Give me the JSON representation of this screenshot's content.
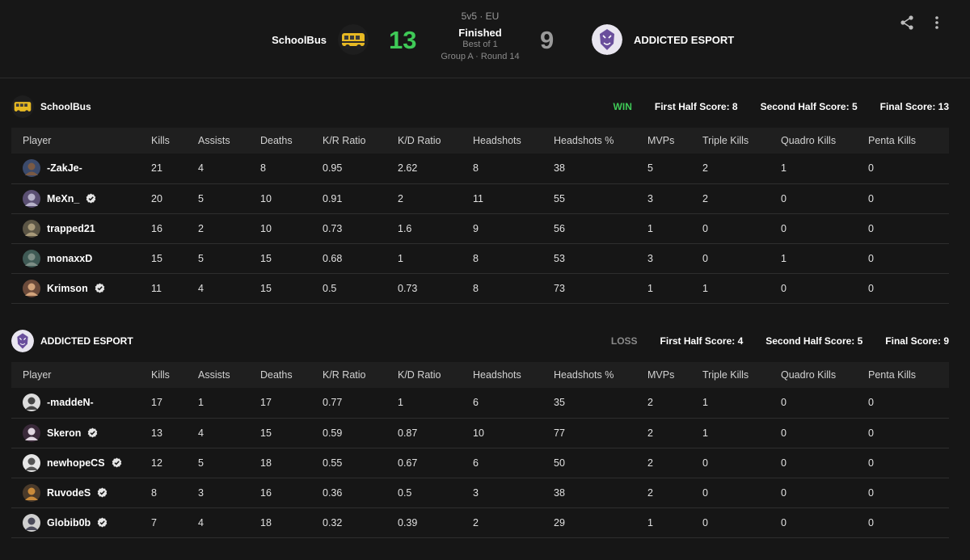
{
  "match": {
    "format": "5v5 · EU",
    "status": "Finished",
    "best_of": "Best of 1",
    "group_round": "Group A · Round 14",
    "left_score": "13",
    "right_score": "9",
    "team1": "SchoolBus",
    "team2": "ADDICTED ESPORT"
  },
  "colors": {
    "win": "#3fca57",
    "loss": "#8a8a8a",
    "bg": "#161616"
  },
  "icons": [
    "share-icon",
    "more-vertical-icon",
    "verified-icon"
  ],
  "columns": [
    "Player",
    "Kills",
    "Assists",
    "Deaths",
    "K/R Ratio",
    "K/D Ratio",
    "Headshots",
    "Headshots %",
    "MVPs",
    "Triple Kills",
    "Quadro Kills",
    "Penta Kills"
  ],
  "teams": [
    {
      "name": "SchoolBus",
      "result": "WIN",
      "first_half": "First Half Score: 8",
      "second_half": "Second Half Score: 5",
      "final": "Final Score: 13",
      "players": [
        {
          "name": "-ZakJe-",
          "verified": false,
          "stats": [
            "21",
            "4",
            "8",
            "0.95",
            "2.62",
            "8",
            "38",
            "5",
            "2",
            "1",
            "0"
          ]
        },
        {
          "name": "MeXn_",
          "verified": true,
          "stats": [
            "20",
            "5",
            "10",
            "0.91",
            "2",
            "11",
            "55",
            "3",
            "2",
            "0",
            "0"
          ]
        },
        {
          "name": "trapped21",
          "verified": false,
          "stats": [
            "16",
            "2",
            "10",
            "0.73",
            "1.6",
            "9",
            "56",
            "1",
            "0",
            "0",
            "0"
          ]
        },
        {
          "name": "monaxxD",
          "verified": false,
          "stats": [
            "15",
            "5",
            "15",
            "0.68",
            "1",
            "8",
            "53",
            "3",
            "0",
            "1",
            "0"
          ]
        },
        {
          "name": "Krimson",
          "verified": true,
          "stats": [
            "11",
            "4",
            "15",
            "0.5",
            "0.73",
            "8",
            "73",
            "1",
            "1",
            "0",
            "0"
          ]
        }
      ]
    },
    {
      "name": "ADDICTED ESPORT",
      "result": "LOSS",
      "first_half": "First Half Score: 4",
      "second_half": "Second Half Score: 5",
      "final": "Final Score: 9",
      "players": [
        {
          "name": "-maddeN-",
          "verified": false,
          "stats": [
            "17",
            "1",
            "17",
            "0.77",
            "1",
            "6",
            "35",
            "2",
            "1",
            "0",
            "0"
          ]
        },
        {
          "name": "Skeron",
          "verified": true,
          "stats": [
            "13",
            "4",
            "15",
            "0.59",
            "0.87",
            "10",
            "77",
            "2",
            "1",
            "0",
            "0"
          ]
        },
        {
          "name": "newhopeCS",
          "verified": true,
          "stats": [
            "12",
            "5",
            "18",
            "0.55",
            "0.67",
            "6",
            "50",
            "2",
            "0",
            "0",
            "0"
          ]
        },
        {
          "name": "RuvodeS",
          "verified": true,
          "stats": [
            "8",
            "3",
            "16",
            "0.36",
            "0.5",
            "3",
            "38",
            "2",
            "0",
            "0",
            "0"
          ]
        },
        {
          "name": "Globib0b",
          "verified": true,
          "stats": [
            "7",
            "4",
            "18",
            "0.32",
            "0.39",
            "2",
            "29",
            "1",
            "0",
            "0",
            "0"
          ]
        }
      ]
    }
  ]
}
